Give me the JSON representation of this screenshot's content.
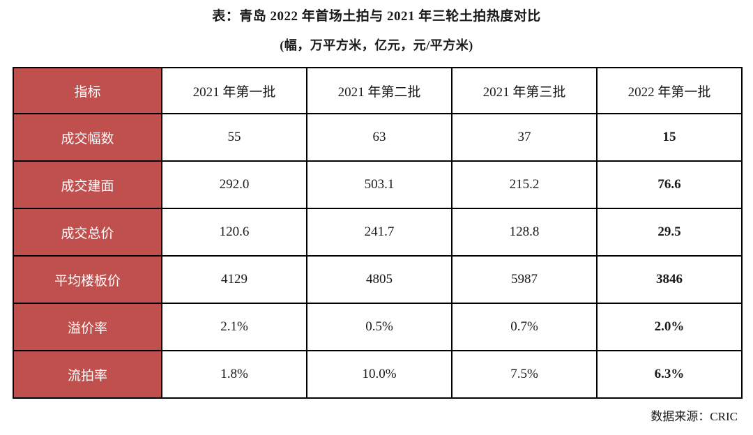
{
  "title": "表：青岛 2022 年首场土拍与 2021 年三轮土拍热度对比",
  "subtitle": "(幅，万平方米，亿元，元/平方米)",
  "source": "数据来源：CRIC",
  "colors": {
    "header_red": "#c0504d",
    "border": "#000000",
    "header_text": "#ffffff",
    "body_text": "#1a1a1a"
  },
  "chart_data": {
    "type": "table",
    "columns": [
      "指标",
      "2021 年第一批",
      "2021 年第二批",
      "2021 年第三批",
      "2022 年第一批"
    ],
    "rows": [
      {
        "label": "成交幅数",
        "values": [
          "55",
          "63",
          "37",
          "15"
        ]
      },
      {
        "label": "成交建面",
        "values": [
          "292.0",
          "503.1",
          "215.2",
          "76.6"
        ]
      },
      {
        "label": "成交总价",
        "values": [
          "120.6",
          "241.7",
          "128.8",
          "29.5"
        ]
      },
      {
        "label": "平均楼板价",
        "values": [
          "4129",
          "4805",
          "5987",
          "3846"
        ]
      },
      {
        "label": "溢价率",
        "values": [
          "2.1%",
          "0.5%",
          "0.7%",
          "2.0%"
        ]
      },
      {
        "label": "流拍率",
        "values": [
          "1.8%",
          "10.0%",
          "7.5%",
          "6.3%"
        ]
      }
    ],
    "notes": "最后一列(2022 年第一批)为粗体强调；首列与表头首格为红底白字"
  }
}
